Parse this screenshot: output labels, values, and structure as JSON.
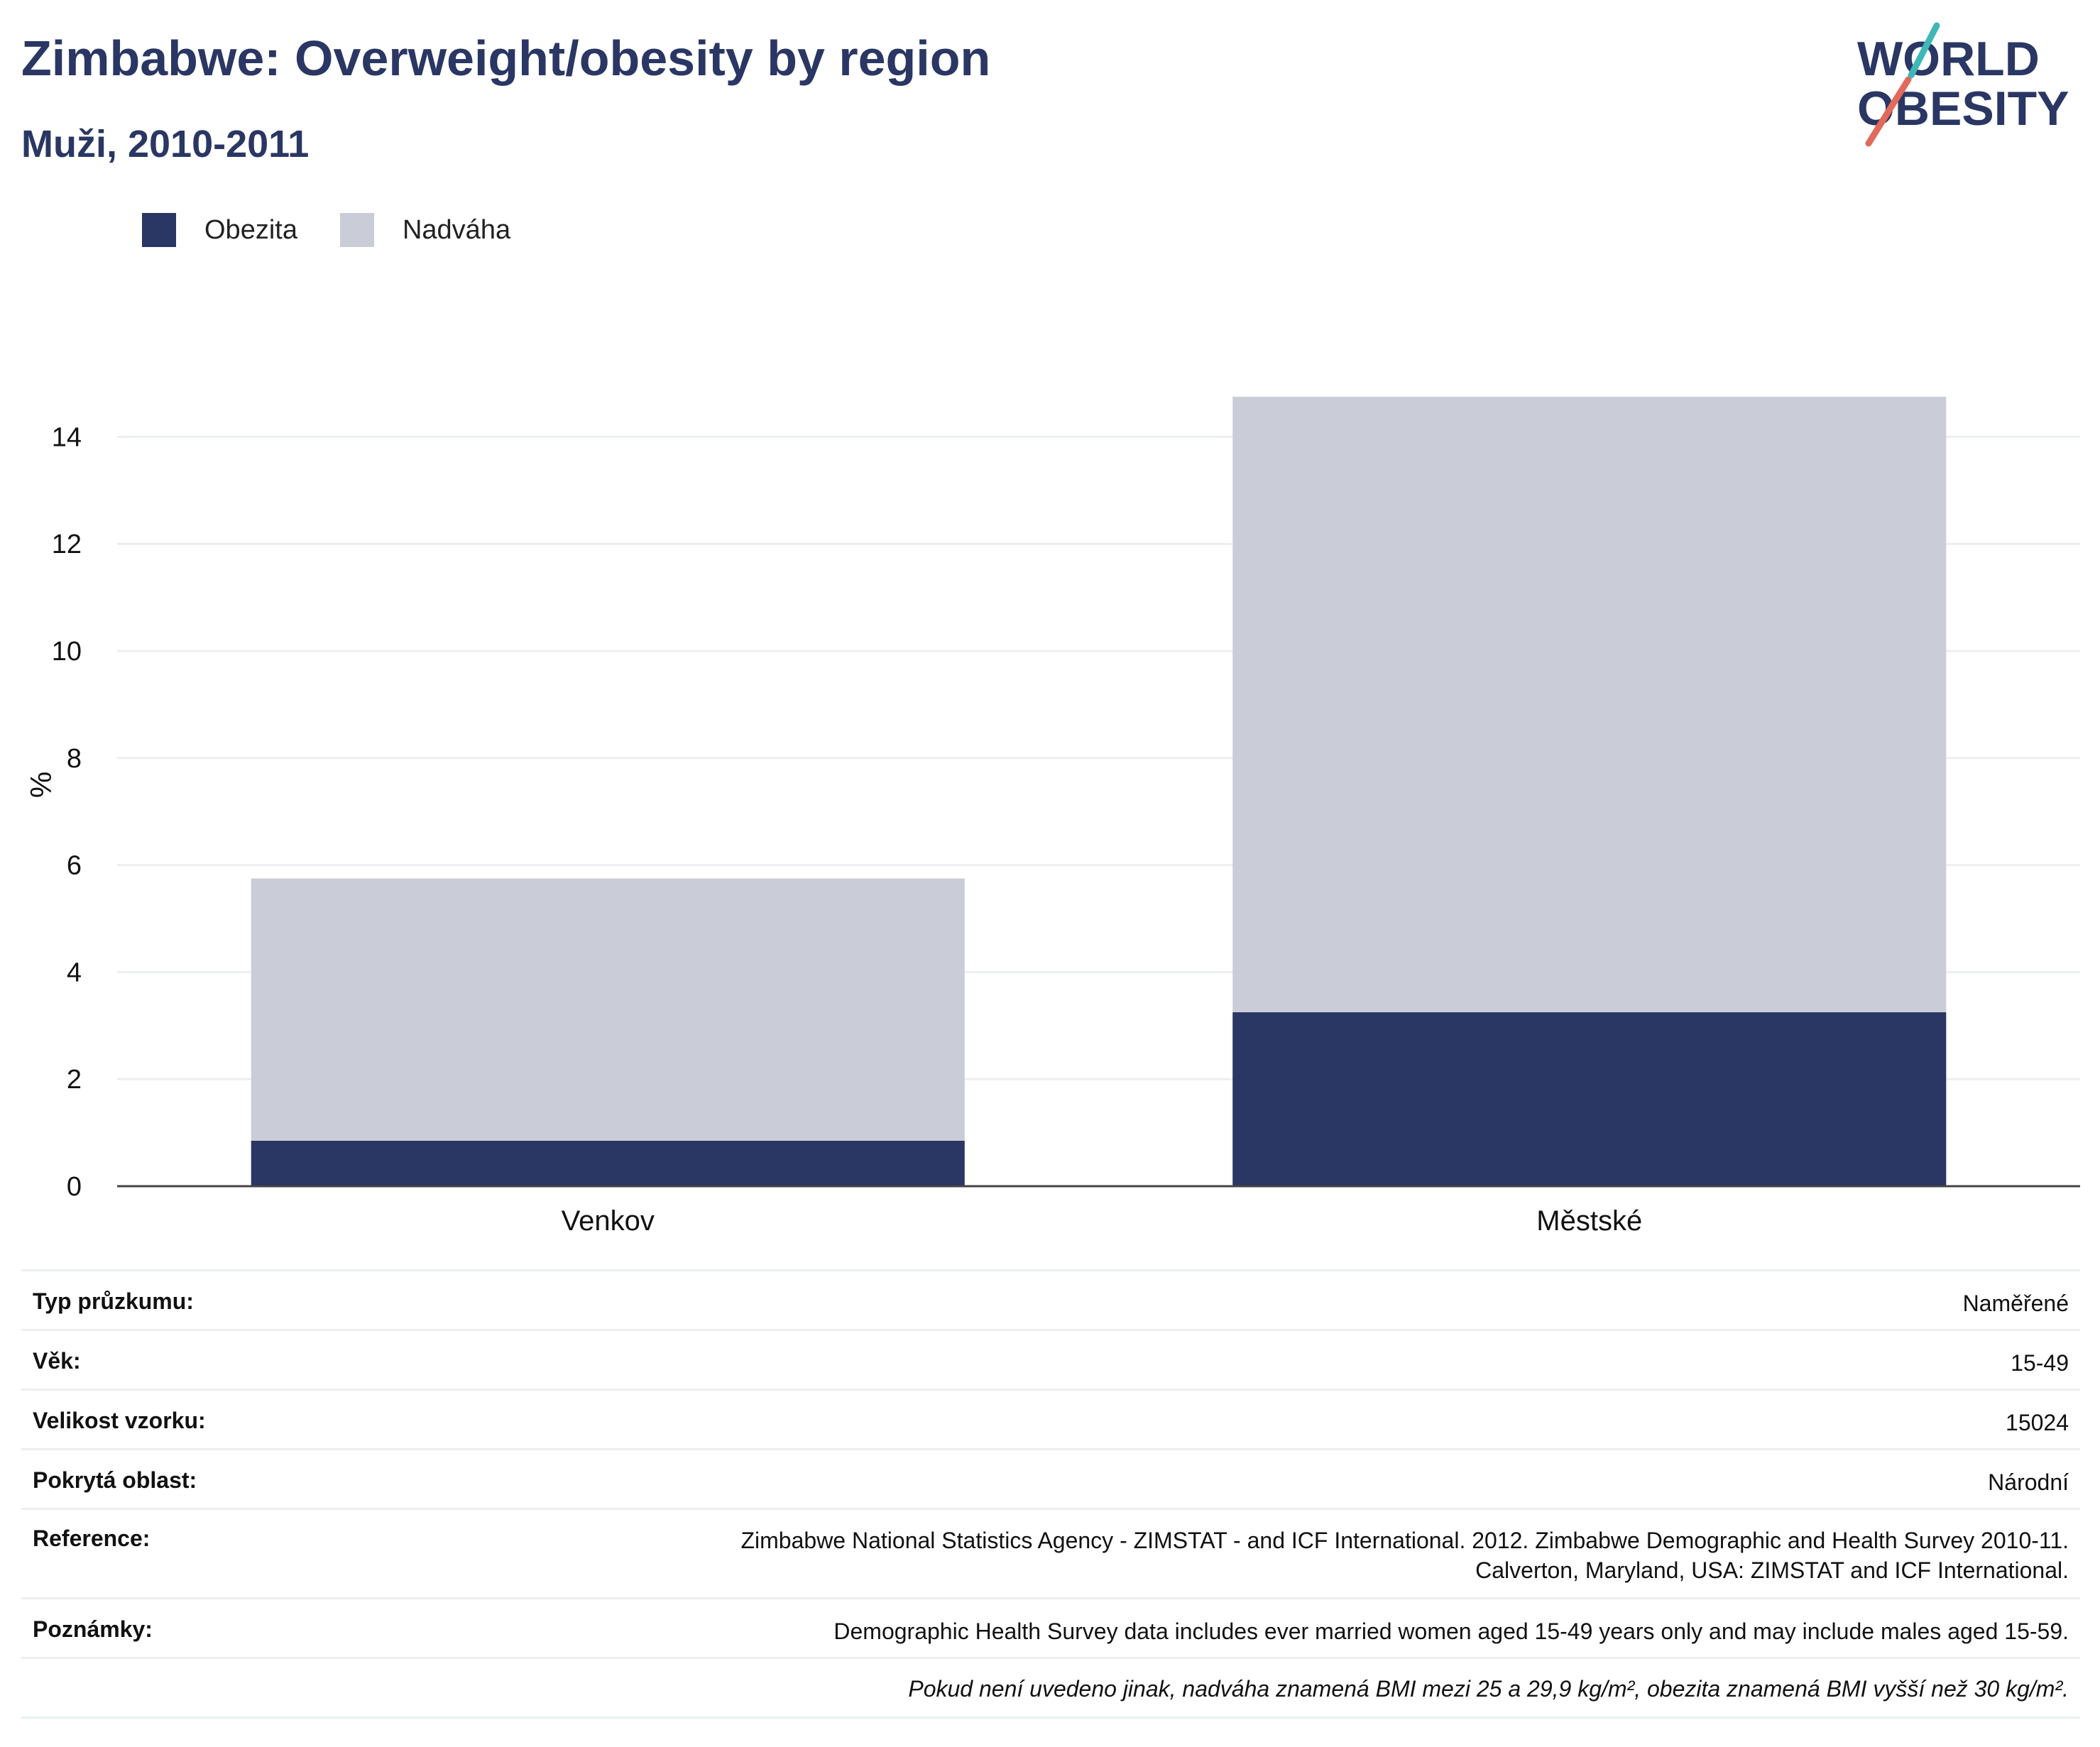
{
  "title": "Zimbabwe: Overweight/obesity by region",
  "subtitle": "Muži, 2010-2011",
  "logo": {
    "line1": "WORLD",
    "line2": "OBESITY"
  },
  "colors": {
    "obesity": "#2a3663",
    "overweight": "#cacdd8",
    "title": "#2a3663",
    "grid": "#eceef2",
    "axis": "#444444"
  },
  "chart_data": {
    "type": "bar",
    "stacked": true,
    "categories": [
      "Venkov",
      "Městské"
    ],
    "series": [
      {
        "name": "Obezita",
        "values": [
          0.85,
          3.25
        ]
      },
      {
        "name": "Nadváha",
        "values": [
          4.9,
          11.5
        ]
      }
    ],
    "title": "Zimbabwe: Overweight/obesity by region",
    "subtitle": "Muži, 2010-2011",
    "ylabel": "%",
    "xlabel": "",
    "ylim": [
      0,
      15
    ],
    "yticks": [
      0,
      2,
      4,
      6,
      8,
      10,
      12,
      14
    ],
    "grid": true,
    "legend": "top-left"
  },
  "meta": {
    "rows": [
      {
        "label": "Typ průzkumu:",
        "value": "Naměřené"
      },
      {
        "label": "Věk:",
        "value": "15-49"
      },
      {
        "label": "Velikost vzorku:",
        "value": "15024"
      },
      {
        "label": "Pokrytá oblast:",
        "value": "Národní"
      },
      {
        "label": "Reference:",
        "value": "Zimbabwe National Statistics Agency - ZIMSTAT - and ICF International. 2012. Zimbabwe Demographic and Health Survey 2010-11.",
        "value2": "Calverton, Maryland, USA: ZIMSTAT and ICF International."
      },
      {
        "label": "Poznámky:",
        "value": "Demographic Health Survey data includes ever married women aged 15-49 years only and may include males aged 15-59."
      }
    ],
    "note": "Pokud není uvedeno jinak, nadváha znamená BMI mezi 25 a 29,9 kg/m², obezita znamená BMI vyšší než 30 kg/m²."
  }
}
